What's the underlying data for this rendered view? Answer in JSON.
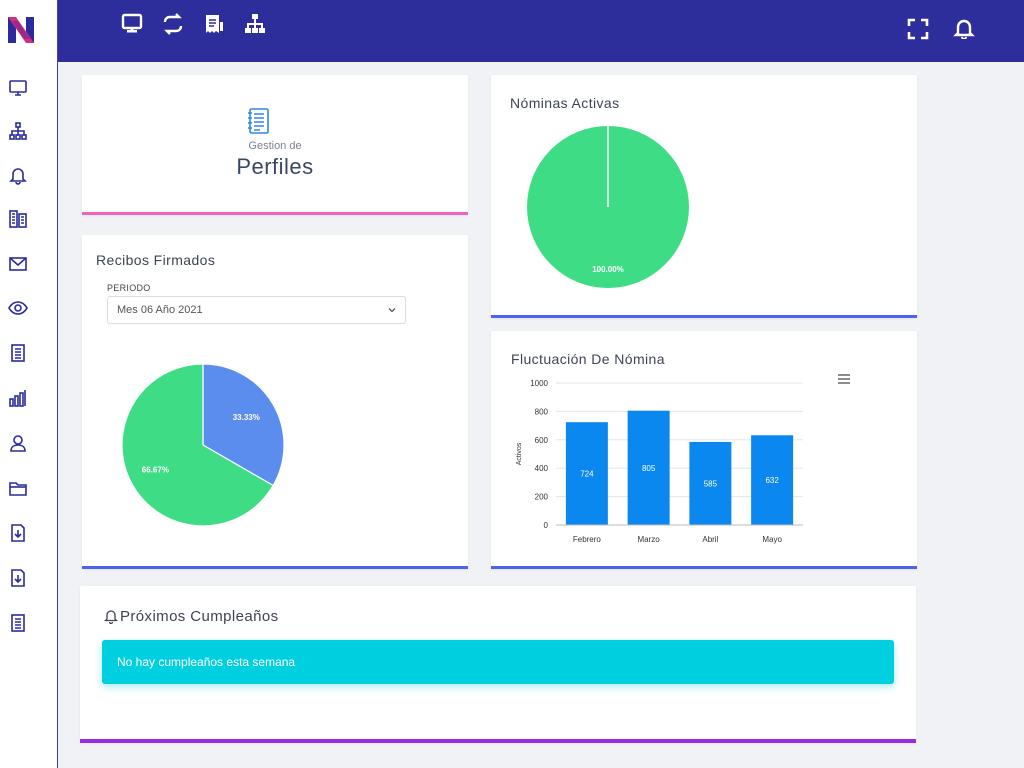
{
  "colors": {
    "topbar": "#2e2d9c",
    "pie_green": "#3ddc85",
    "pie_blue": "#5b8def",
    "bar_blue": "#0a88f0",
    "accent_pink": "#f062c0",
    "accent_blue": "#4a63f0",
    "accent_purple": "#9a2be0",
    "alert_cyan": "#00cfdf"
  },
  "sidebar": {
    "logo": "app-logo",
    "items": [
      {
        "icon": "monitor-icon"
      },
      {
        "icon": "sitemap-icon"
      },
      {
        "icon": "bell-icon"
      },
      {
        "icon": "building-icon"
      },
      {
        "icon": "envelope-icon"
      },
      {
        "icon": "eye-icon"
      },
      {
        "icon": "document-icon"
      },
      {
        "icon": "bar-chart-icon"
      },
      {
        "icon": "user-icon"
      },
      {
        "icon": "folder-icon"
      },
      {
        "icon": "file-download-icon"
      },
      {
        "icon": "file-download-icon"
      },
      {
        "icon": "document-icon"
      }
    ]
  },
  "topbar": {
    "left_icons": [
      "monitor-icon",
      "refresh-icon",
      "receipt-icon",
      "sitemap-icon"
    ],
    "right_icons": [
      "fullscreen-icon",
      "bell-icon"
    ]
  },
  "perfiles": {
    "small": "Gestion de",
    "big": "Perfiles"
  },
  "nominas": {
    "title": "Nóminas Activas",
    "chart_data": {
      "type": "pie",
      "slices": [
        {
          "value": 100.0,
          "label": "100.00%"
        }
      ]
    }
  },
  "recibos": {
    "title": "Recibos Firmados",
    "periodo_label": "PERIODO",
    "periodo_value": "Mes 06 Año 2021",
    "chart_data": {
      "type": "pie",
      "slices": [
        {
          "value": 33.33,
          "label": "33.33%"
        },
        {
          "value": 66.67,
          "label": "66.67%"
        }
      ]
    }
  },
  "fluctuacion": {
    "title": "Fluctuación De Nómina",
    "chart_data": {
      "type": "bar",
      "categories": [
        "Febrero",
        "Marzo",
        "Abril",
        "Mayo"
      ],
      "values": [
        724,
        805,
        585,
        632
      ],
      "value_labels": [
        "724",
        "805",
        "585",
        "632"
      ],
      "ylabel": "Activos",
      "ylim": [
        0,
        1000
      ],
      "yticks": [
        "0",
        "200",
        "400",
        "600",
        "800",
        "1000"
      ],
      "grid": true
    }
  },
  "cumpleanos": {
    "title": "Próximos Cumpleaños",
    "alert": "No hay cumpleaños esta semana"
  }
}
